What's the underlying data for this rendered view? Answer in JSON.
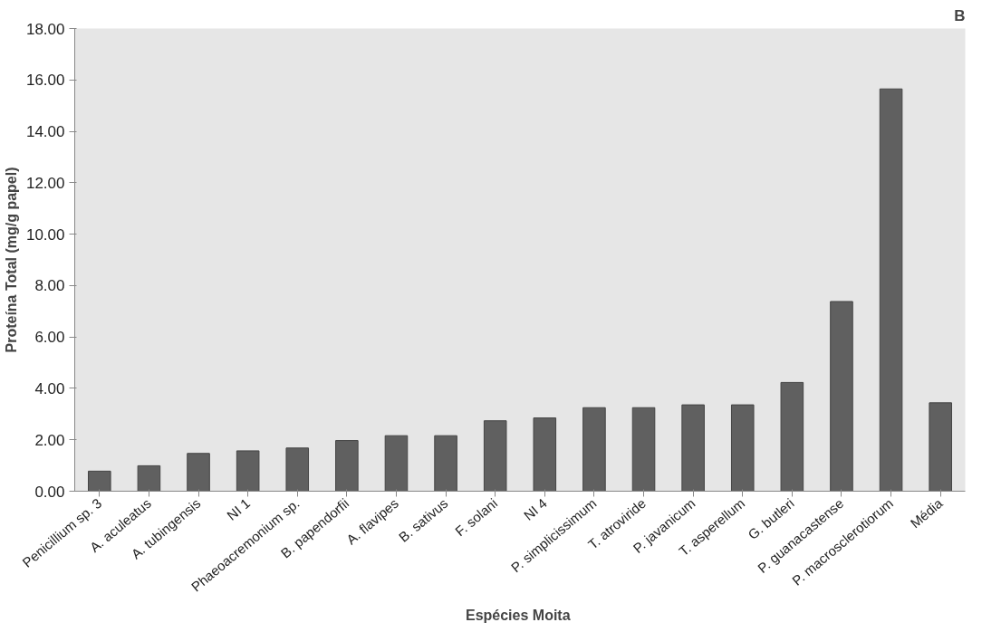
{
  "chart_data": {
    "type": "bar",
    "title": "B",
    "xlabel": "Espécies  Moita",
    "ylabel": "Proteína Total (mg/g papel)",
    "categories": [
      "Penicillium sp. 3",
      "A. aculeatus",
      "A. tubingensis",
      "NI 1",
      "Phaeoacremonium sp.",
      "B. papendorfii",
      "A. flavipes",
      "B. sativus",
      "F. solani",
      "NI 4",
      "P. simplicissimum",
      "T. atroviride",
      "P. javanicum",
      "T. asperellum",
      "G. butleri",
      "P. guanacastense",
      "P. macrosclerotiorum",
      "Média"
    ],
    "values": [
      0.78,
      0.99,
      1.47,
      1.57,
      1.68,
      1.97,
      2.16,
      2.16,
      2.74,
      2.85,
      3.25,
      3.25,
      3.36,
      3.36,
      4.23,
      7.38,
      15.65,
      3.44
    ],
    "color": "#606060",
    "ylim": [
      0,
      18
    ],
    "yticks": [
      {
        "value": 0,
        "label": "0.00"
      },
      {
        "value": 2,
        "label": "2.00"
      },
      {
        "value": 4,
        "label": "4.00"
      },
      {
        "value": 6,
        "label": "6.00"
      },
      {
        "value": 8,
        "label": "8.00"
      },
      {
        "value": 10,
        "label": "10.00"
      },
      {
        "value": 12,
        "label": "12.00"
      },
      {
        "value": 14,
        "label": "14.00"
      },
      {
        "value": 16,
        "label": "16.00"
      },
      {
        "value": 18,
        "label": "18.00"
      }
    ]
  }
}
